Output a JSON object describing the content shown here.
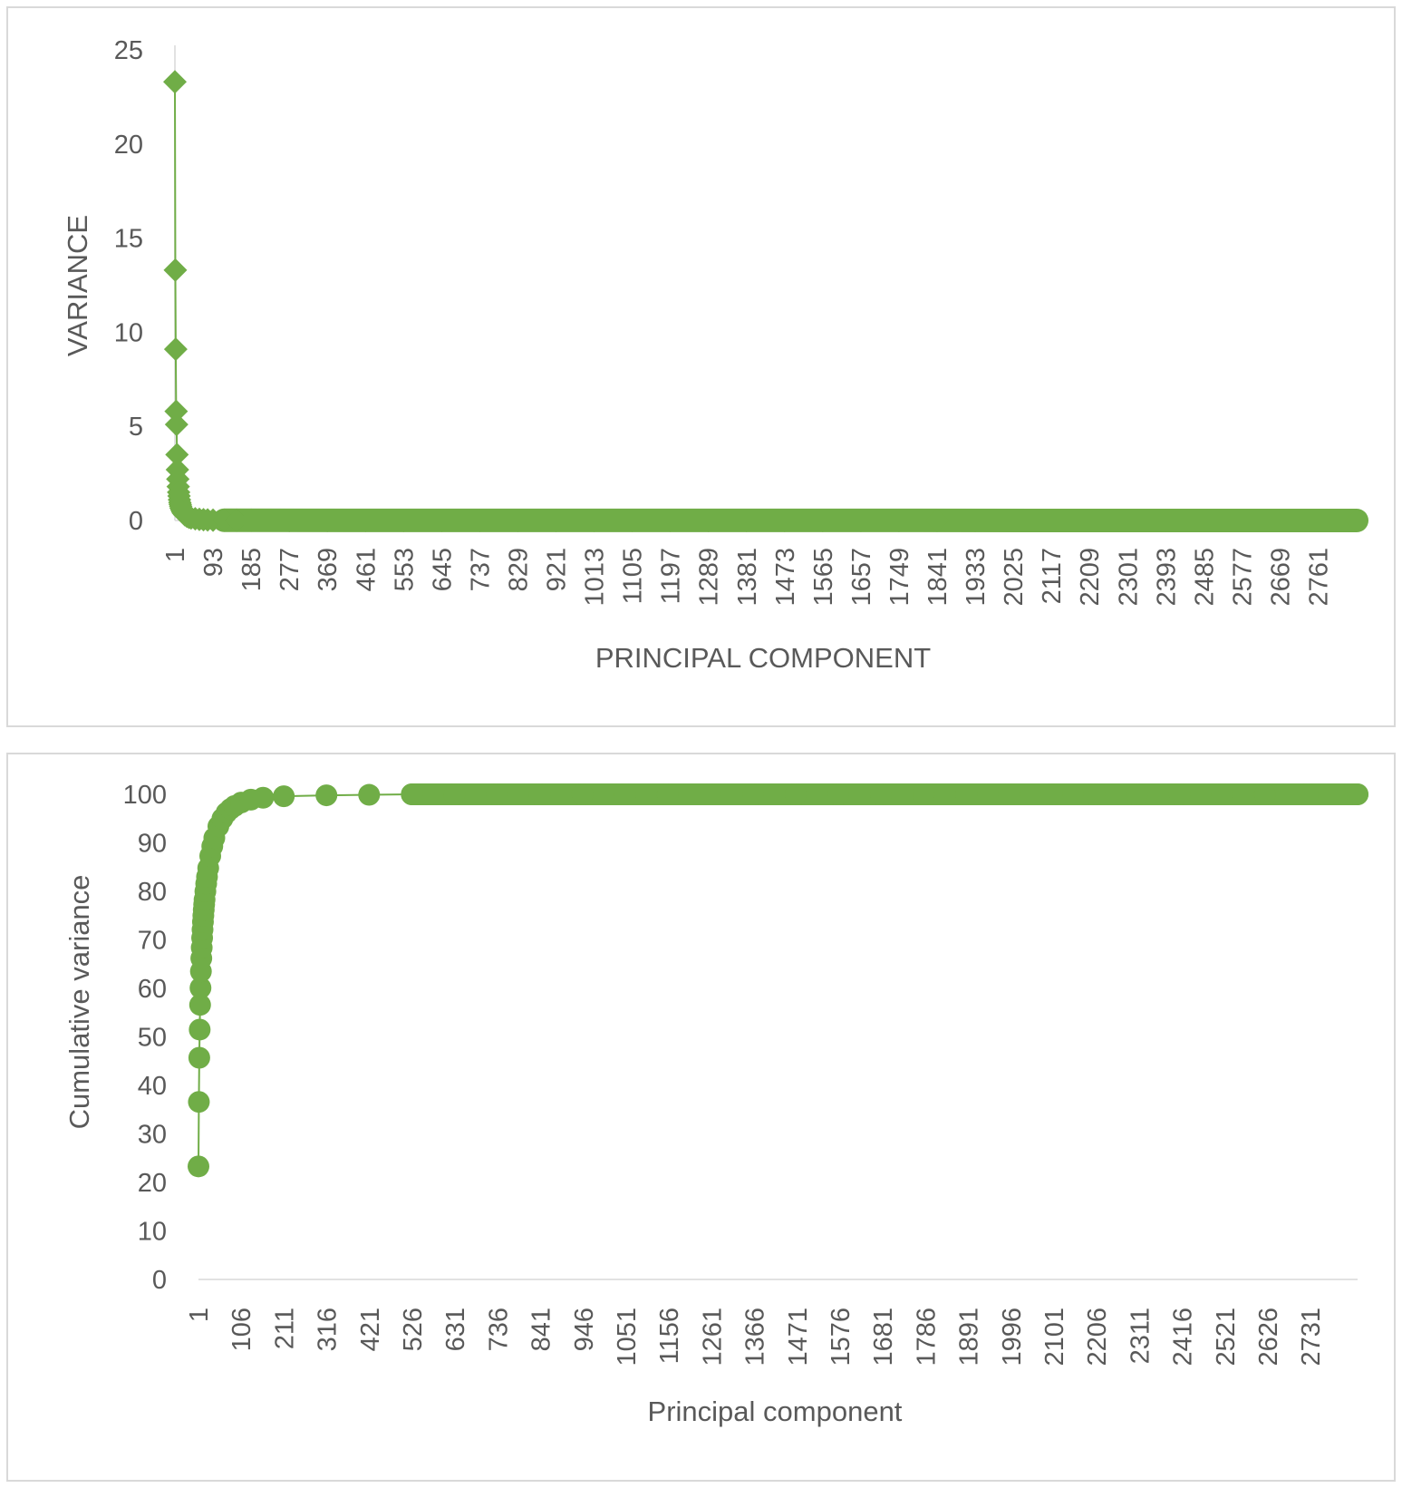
{
  "chart_data": [
    {
      "type": "scatter",
      "marker": "diamond",
      "color": "#70ad47",
      "xlabel": "PRINCIPAL COMPONENT",
      "ylabel": "VARIANCE",
      "ylim": [
        0,
        25
      ],
      "yticks": [
        "0",
        "5",
        "10",
        "15",
        "20",
        "25"
      ],
      "xlim": [
        1,
        2854
      ],
      "xticks": [
        "1",
        "93",
        "185",
        "277",
        "369",
        "461",
        "553",
        "645",
        "737",
        "829",
        "921",
        "1013",
        "1105",
        "1197",
        "1289",
        "1381",
        "1473",
        "1565",
        "1657",
        "1749",
        "1841",
        "1933",
        "2025",
        "2117",
        "2209",
        "2301",
        "2393",
        "2485",
        "2577",
        "2669",
        "2761"
      ],
      "grid": false,
      "series": [
        {
          "x": [
            1,
            2,
            3,
            4,
            5,
            6,
            7,
            8,
            9,
            10,
            11,
            12,
            13,
            14,
            15,
            16,
            18,
            20,
            22,
            25,
            30,
            35,
            40,
            50,
            60,
            70,
            80,
            93,
            120,
            150,
            185,
            277,
            369,
            461,
            553,
            645,
            737,
            829,
            921,
            1013,
            1105,
            1197,
            1289,
            1381,
            1473,
            1565,
            1657,
            1749,
            1841,
            1933,
            2025,
            2117,
            2209,
            2301,
            2393,
            2485,
            2577,
            2669,
            2761,
            2854
          ],
          "y": [
            23.3,
            13.3,
            9.1,
            5.8,
            5.1,
            3.5,
            2.7,
            2.2,
            1.8,
            1.5,
            1.3,
            1.1,
            0.95,
            0.85,
            0.75,
            0.65,
            0.55,
            0.45,
            0.38,
            0.3,
            0.22,
            0.17,
            0.13,
            0.09,
            0.06,
            0.04,
            0.03,
            0.02,
            0.01,
            0.01,
            0.01,
            0,
            0,
            0,
            0,
            0,
            0,
            0,
            0,
            0,
            0,
            0,
            0,
            0,
            0,
            0,
            0,
            0,
            0,
            0,
            0,
            0,
            0,
            0,
            0,
            0,
            0,
            0,
            0,
            0
          ]
        }
      ]
    },
    {
      "type": "scatter",
      "marker": "circle",
      "color": "#70ad47",
      "xlabel": "Principal component",
      "ylabel": "Cumulative variance",
      "ylim": [
        0,
        100
      ],
      "yticks": [
        "0",
        "10",
        "20",
        "30",
        "40",
        "50",
        "60",
        "70",
        "80",
        "90",
        "100"
      ],
      "xlim": [
        1,
        2854
      ],
      "xticks": [
        "1",
        "106",
        "211",
        "316",
        "421",
        "526",
        "631",
        "736",
        "841",
        "946",
        "1051",
        "1156",
        "1261",
        "1366",
        "1471",
        "1576",
        "1681",
        "1786",
        "1891",
        "1996",
        "2101",
        "2206",
        "2311",
        "2416",
        "2521",
        "2626",
        "2731"
      ],
      "grid": false,
      "series": [
        {
          "x": [
            1,
            2,
            3,
            4,
            5,
            6,
            7,
            8,
            9,
            10,
            11,
            12,
            13,
            14,
            15,
            16,
            18,
            20,
            22,
            25,
            30,
            35,
            40,
            50,
            60,
            70,
            80,
            90,
            106,
            130,
            160,
            211,
            316,
            421,
            526,
            631,
            736,
            841,
            946,
            1051,
            1156,
            1261,
            1366,
            1471,
            1576,
            1681,
            1786,
            1891,
            1996,
            2101,
            2206,
            2311,
            2416,
            2521,
            2626,
            2731,
            2854
          ],
          "y": [
            23.3,
            36.6,
            45.7,
            51.5,
            56.6,
            60.1,
            63.5,
            66.2,
            68.4,
            70.4,
            72.1,
            73.7,
            75.0,
            76.2,
            77.3,
            78.3,
            80.0,
            81.6,
            83.0,
            84.8,
            87.3,
            89.3,
            91.0,
            93.4,
            95.0,
            96.2,
            97.0,
            97.6,
            98.3,
            98.9,
            99.3,
            99.6,
            99.8,
            99.9,
            100,
            100,
            100,
            100,
            100,
            100,
            100,
            100,
            100,
            100,
            100,
            100,
            100,
            100,
            100,
            100,
            100,
            100,
            100,
            100,
            100,
            100,
            100
          ]
        }
      ]
    }
  ]
}
